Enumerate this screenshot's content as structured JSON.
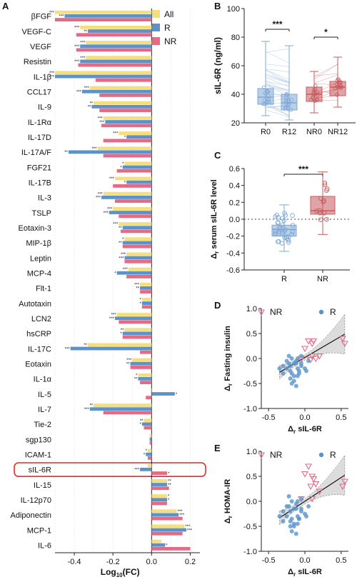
{
  "colors": {
    "all": "#f4de7e",
    "r": "#5b93c9",
    "nr": "#e46a86",
    "r_box": "#7fa7d6",
    "nr_box": "#c75a5e",
    "highlight": "#e02d2d"
  },
  "chart_data": [
    {
      "panel": "A",
      "type": "bar",
      "orientation": "horizontal",
      "xlabel": "Log10(FC)",
      "xlabel_main": "Log",
      "xlabel_sub": "10",
      "xlabel_tail": "(FC)",
      "xlim": [
        -0.5,
        0.25
      ],
      "xticks": [
        -0.4,
        -0.2,
        0.0,
        0.2
      ],
      "xtick_labels": [
        "-0.4",
        "-0.2",
        "0.0",
        "0.2"
      ],
      "legend_position": "top-right",
      "highlighted": "sIL-6R",
      "categories": [
        "βFGF",
        "VEGF-C",
        "VEGF",
        "Resistin",
        "IL-1β",
        "CCL17",
        "IL-9",
        "IL-1Rα",
        "IL-17D",
        "IL-17A/F",
        "FGF21",
        "IL-17B",
        "IL-3",
        "TSLP",
        "Eotaxin-3",
        "MIP-1β",
        "Leptin",
        "MCP-4",
        "Flt-1",
        "Autotaxin",
        "LCN2",
        "hsCRP",
        "IL-17C",
        "Eotaxin",
        "IL-1α",
        "IL-5",
        "IL-7",
        "Tie-2",
        "sgp130",
        "ICAM-1",
        "sIL-6R",
        "IL-15",
        "IL-12p70",
        "Adiponectin",
        "MCP-1",
        "IL-6"
      ],
      "series": [
        {
          "name": "All",
          "values": [
            -0.5,
            -0.37,
            -0.34,
            -0.34,
            -0.5,
            -0.32,
            -0.3,
            -0.25,
            -0.17,
            -0.28,
            -0.14,
            -0.19,
            -0.25,
            -0.2,
            -0.17,
            -0.14,
            -0.13,
            -0.12,
            -0.06,
            -0.05,
            -0.18,
            -0.14,
            -0.33,
            -0.1,
            -0.07,
            0.0,
            -0.3,
            -0.04,
            -0.01,
            -0.02,
            -0.02,
            0.08,
            0.08,
            0.13,
            0.17,
            0.05
          ],
          "stars": [
            "***",
            "***",
            "***",
            "***",
            "***",
            "***",
            "**",
            "***",
            "***",
            "***",
            "*",
            "***",
            "***",
            "***",
            "***",
            "*",
            "***",
            "***",
            "***",
            "*",
            "***",
            "**",
            "**",
            "***",
            "*",
            "",
            "**",
            "**",
            "",
            "*",
            "",
            "**",
            "*",
            "***",
            "***",
            ""
          ]
        },
        {
          "name": "R",
          "values": [
            -0.45,
            -0.33,
            -0.37,
            -0.37,
            -0.5,
            -0.36,
            -0.31,
            -0.24,
            -0.13,
            -0.43,
            -0.15,
            -0.13,
            -0.26,
            -0.22,
            -0.15,
            -0.15,
            -0.14,
            -0.18,
            -0.06,
            -0.05,
            -0.19,
            -0.15,
            -0.42,
            -0.11,
            -0.07,
            0.12,
            -0.32,
            -0.05,
            -0.01,
            -0.03,
            -0.06,
            0.08,
            0.08,
            0.14,
            0.18,
            0.07
          ],
          "stars": [
            "***",
            "**",
            "***",
            "***",
            "***",
            "***",
            "**",
            "***",
            "*",
            "**",
            "*",
            "*",
            "***",
            "***",
            "**",
            "**",
            "***",
            "*",
            "**",
            "*",
            "***",
            "*",
            "***",
            "**",
            "**",
            "*",
            "***",
            "*",
            "",
            "*",
            "***",
            "**",
            "*",
            "***",
            "***",
            "*"
          ]
        },
        {
          "name": "NR",
          "values": [
            -0.5,
            -0.39,
            -0.39,
            -0.38,
            -0.29,
            -0.27,
            -0.27,
            -0.26,
            -0.25,
            -0.25,
            -0.18,
            -0.2,
            -0.19,
            -0.17,
            -0.16,
            -0.15,
            -0.14,
            -0.13,
            -0.06,
            -0.05,
            -0.17,
            -0.15,
            -0.06,
            -0.11,
            -0.06,
            -0.03,
            -0.25,
            -0.04,
            -0.01,
            -0.02,
            0.08,
            0.09,
            0.08,
            0.16,
            0.16,
            0.2
          ],
          "stars": [
            "",
            "",
            "",
            "",
            "",
            "",
            "",
            "",
            "",
            "",
            "",
            "",
            "",
            "",
            "",
            "",
            "",
            "",
            "",
            "",
            "",
            "",
            "",
            "",
            "",
            "",
            "",
            "",
            "",
            "",
            "*",
            "",
            "",
            "",
            "",
            ""
          ]
        }
      ]
    },
    {
      "panel": "B",
      "type": "box",
      "ylabel": "sIL-6R (ng/ml)",
      "ylim": [
        20,
        100
      ],
      "yticks": [
        20,
        40,
        60,
        80,
        100
      ],
      "categories": [
        "R0",
        "R12",
        "NR0",
        "NR12"
      ],
      "boxes": [
        {
          "group": "R0",
          "min": 25,
          "q1": 33,
          "median": 38,
          "q3": 44,
          "max": 77
        },
        {
          "group": "R12",
          "min": 22,
          "q1": 29,
          "median": 34,
          "q3": 40,
          "max": 74
        },
        {
          "group": "NR0",
          "min": 27,
          "q1": 35,
          "median": 40,
          "q3": 45,
          "max": 56
        },
        {
          "group": "NR12",
          "min": 31,
          "q1": 39,
          "median": 45,
          "q3": 49,
          "max": 66
        }
      ],
      "comparisons": [
        {
          "between": [
            "R0",
            "R12"
          ],
          "label": "***"
        },
        {
          "between": [
            "NR0",
            "NR12"
          ],
          "label": "*"
        }
      ]
    },
    {
      "panel": "C",
      "type": "box",
      "ylabel": "Δr serum sIL-6R level",
      "ylabel_delta": "Δ",
      "ylabel_sub": "r",
      "ylabel_tail": " serum sIL-6R level",
      "ylim": [
        -0.6,
        0.6
      ],
      "yticks": [
        -0.6,
        -0.4,
        -0.2,
        0.0,
        0.2,
        0.4,
        0.6
      ],
      "ytick_labels": [
        "-0.6",
        "-0.4",
        "-0.2",
        "0.0",
        "0.2",
        "0.4",
        "0.6"
      ],
      "categories": [
        "R",
        "NR"
      ],
      "boxes": [
        {
          "group": "R",
          "min": -0.38,
          "q1": -0.2,
          "median": -0.12,
          "q3": -0.07,
          "max": 0.17
        },
        {
          "group": "NR",
          "min": -0.18,
          "q1": 0.06,
          "median": 0.1,
          "q3": 0.27,
          "max": 0.56
        }
      ],
      "reference_line": 0,
      "comparisons": [
        {
          "between": [
            "R",
            "NR"
          ],
          "label": "***"
        }
      ]
    },
    {
      "panel": "D",
      "type": "scatter",
      "ylabel": "Δr Fasting insulin",
      "xlabel": "Δr sIL-6R",
      "xlim": [
        -0.6,
        0.6
      ],
      "ylim": [
        -1.0,
        1.0
      ],
      "xticks": [
        -0.5,
        0.0,
        0.5
      ],
      "xtick_labels": [
        "-0.5",
        "0.0",
        "0.5"
      ],
      "yticks": [
        -1.0,
        -0.5,
        0.0,
        0.5,
        1.0
      ],
      "ytick_labels": [
        "-1.0",
        "-0.5",
        "0.0",
        "0.5",
        "1.0"
      ],
      "legend_position": "top",
      "fit": {
        "slope": 0.85,
        "intercept": 0.02
      },
      "series": [
        {
          "name": "NR",
          "marker": "triangle-down",
          "x": [
            0.05,
            0.1,
            0.12,
            0.15,
            0.52,
            0.55,
            0.0,
            0.1,
            -0.05,
            0.08,
            0.2
          ],
          "y": [
            0.35,
            0.3,
            0.35,
            0.0,
            0.4,
            0.3,
            0.2,
            0.05,
            0.0,
            -0.02,
            0.05
          ]
        },
        {
          "name": "R",
          "marker": "circle",
          "x": [
            -0.3,
            -0.25,
            -0.22,
            -0.2,
            -0.18,
            -0.15,
            -0.12,
            -0.1,
            -0.08,
            -0.05,
            -0.2,
            -0.15,
            -0.1,
            -0.25,
            -0.05,
            0.0,
            -0.18,
            -0.12,
            -0.3,
            -0.22,
            -0.08,
            -0.15,
            0.05,
            -0.1,
            -0.2,
            -0.05,
            -0.35,
            -0.12,
            0.02,
            -0.18
          ],
          "y": [
            -0.15,
            -0.2,
            -0.1,
            -0.25,
            -0.3,
            -0.1,
            -0.05,
            -0.2,
            -0.25,
            -0.15,
            -0.4,
            -0.35,
            0.0,
            -0.05,
            -0.1,
            -0.2,
            -0.5,
            -0.55,
            -0.3,
            0.05,
            -0.3,
            -0.45,
            -0.05,
            -0.35,
            -0.15,
            0.05,
            -0.2,
            -0.1,
            -0.25,
            0.0
          ]
        }
      ]
    },
    {
      "panel": "E",
      "type": "scatter",
      "ylabel": "Δr HOMA-IR",
      "xlabel": "Δr sIL-6R",
      "xlim": [
        -0.6,
        0.6
      ],
      "ylim": [
        -1.0,
        1.0
      ],
      "xticks": [
        -0.5,
        0.0,
        0.5
      ],
      "xtick_labels": [
        "-0.5",
        "0.0",
        "0.5"
      ],
      "yticks": [
        -1.0,
        -0.5,
        0.0,
        0.5,
        1.0
      ],
      "ytick_labels": [
        "-1.0",
        "-0.5",
        "0.0",
        "0.5",
        "1.0"
      ],
      "legend_position": "top",
      "fit": {
        "slope": 0.95,
        "intercept": 0.0
      },
      "series": [
        {
          "name": "NR",
          "marker": "triangle-down",
          "x": [
            0.0,
            0.05,
            0.12,
            0.15,
            0.52,
            0.55,
            0.08,
            0.1,
            -0.05,
            0.2,
            0.1
          ],
          "y": [
            0.55,
            0.7,
            0.45,
            0.35,
            0.3,
            0.4,
            0.3,
            0.05,
            0.05,
            0.2,
            0.5
          ]
        },
        {
          "name": "R",
          "marker": "circle",
          "x": [
            -0.3,
            -0.25,
            -0.22,
            -0.2,
            -0.18,
            -0.15,
            -0.12,
            -0.1,
            -0.08,
            -0.05,
            -0.2,
            -0.15,
            -0.1,
            -0.25,
            -0.05,
            0.0,
            -0.18,
            -0.12,
            -0.3,
            -0.22,
            -0.08,
            -0.15,
            0.05,
            -0.1,
            -0.2,
            -0.05,
            -0.35,
            -0.12,
            0.02,
            -0.18
          ],
          "y": [
            -0.2,
            -0.3,
            -0.1,
            -0.4,
            -0.35,
            -0.15,
            -0.05,
            -0.3,
            -0.35,
            -0.2,
            -0.5,
            -0.45,
            0.0,
            -0.1,
            -0.15,
            -0.25,
            -0.6,
            -0.65,
            -0.4,
            0.1,
            -0.35,
            -0.5,
            -0.1,
            -0.45,
            -0.2,
            0.05,
            -0.3,
            -0.15,
            -0.3,
            0.0
          ]
        }
      ]
    }
  ]
}
